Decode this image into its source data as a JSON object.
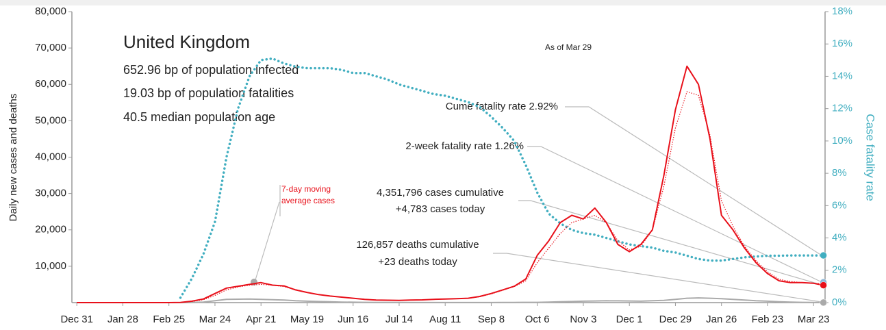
{
  "chart_data": {
    "type": "line",
    "title": "United Kingdom",
    "stats": [
      "652.96 bp of population infected",
      "19.03 bp of population fatalities",
      "40.5 median population age"
    ],
    "as_of": "As of Mar 29",
    "y_label": "Daily new cases and deaths",
    "y2_label": "Case fatality rate",
    "annotations": {
      "ma_label": "7-day moving average cases",
      "cume_cfr": "Cume fatality rate 2.92%",
      "two_week_cfr": "2-week fatality rate 1.26%",
      "cases_cum": "4,351,796 cases cumulative",
      "cases_today": "+4,783 cases today",
      "deaths_cum": "126,857 deaths cumulative",
      "deaths_today": "+23 deaths today"
    },
    "markers": [
      {
        "value": 2.92,
        "axis": "y2",
        "color": "#41aec0"
      },
      {
        "value": 1.26,
        "axis": "y2",
        "color": "#8fb8d8"
      },
      {
        "value": 4783,
        "color": "#e8101a"
      },
      {
        "value": 23,
        "color": "#aaaaaa"
      }
    ],
    "x": [
      0,
      7,
      14,
      21,
      28,
      35,
      42,
      49,
      56,
      63,
      70,
      77,
      84,
      91,
      98,
      105,
      112,
      119,
      126,
      133,
      140,
      147,
      154,
      161,
      168,
      175,
      182,
      189,
      196,
      203,
      210,
      217,
      224,
      231,
      238,
      245,
      252,
      259,
      266,
      273,
      280,
      287,
      294,
      301,
      308,
      315,
      322,
      329,
      336,
      343,
      350,
      357,
      364,
      371,
      378,
      385,
      392,
      399,
      406,
      413,
      420,
      427,
      434,
      441,
      448,
      454
    ],
    "series": [
      {
        "color": "#e8101a",
        "style": "solid",
        "values": [
          0,
          0,
          0,
          0,
          0,
          0,
          0,
          0,
          0,
          50,
          400,
          1000,
          2500,
          4000,
          4500,
          5000,
          5500,
          4800,
          4600,
          3500,
          2800,
          2200,
          1800,
          1500,
          1200,
          900,
          700,
          650,
          600,
          700,
          750,
          900,
          1000,
          1100,
          1200,
          1700,
          2500,
          3500,
          4500,
          6500,
          13000,
          17000,
          22000,
          24000,
          23000,
          26000,
          22000,
          16000,
          14000,
          16000,
          20000,
          35000,
          53000,
          65000,
          60000,
          45000,
          24000,
          20000,
          15000,
          11000,
          8000,
          6000,
          5500,
          5500,
          5300,
          4783
        ]
      },
      {
        "color": "#e8101a",
        "style": "dotted",
        "values": [
          0,
          0,
          0,
          0,
          0,
          0,
          0,
          0,
          0,
          30,
          300,
          800,
          2000,
          3500,
          4300,
          4800,
          5000,
          4800,
          4400,
          3600,
          2800,
          2200,
          1800,
          1500,
          1200,
          950,
          750,
          650,
          620,
          680,
          760,
          880,
          980,
          1080,
          1200,
          1600,
          2400,
          3400,
          4400,
          6000,
          11000,
          15000,
          19000,
          22000,
          23000,
          24000,
          22000,
          17000,
          14500,
          15500,
          20000,
          32000,
          48000,
          58000,
          57000,
          46000,
          28000,
          21000,
          15500,
          11500,
          8500,
          6400,
          5800,
          5500,
          5300,
          5200
        ]
      },
      {
        "color": "#aaaaaa",
        "style": "solid",
        "values": [
          0,
          0,
          0,
          0,
          0,
          0,
          0,
          0,
          0,
          2,
          30,
          150,
          500,
          900,
          950,
          1000,
          900,
          800,
          700,
          500,
          400,
          300,
          250,
          150,
          120,
          80,
          60,
          40,
          30,
          20,
          15,
          12,
          10,
          10,
          10,
          12,
          15,
          30,
          50,
          70,
          80,
          150,
          250,
          300,
          400,
          450,
          500,
          480,
          450,
          400,
          500,
          600,
          900,
          1200,
          1300,
          1200,
          1100,
          900,
          700,
          500,
          400,
          250,
          150,
          80,
          50,
          23
        ]
      },
      {
        "color": "#41aec0",
        "style": "dotted-thick",
        "axis": "y2",
        "values": [
          null,
          null,
          null,
          null,
          null,
          null,
          null,
          null,
          null,
          0.3,
          1.5,
          3,
          5,
          9,
          12,
          14,
          15,
          15.1,
          14.8,
          14.6,
          14.5,
          14.5,
          14.5,
          14.4,
          14.2,
          14.2,
          14.0,
          13.8,
          13.5,
          13.3,
          13.1,
          12.9,
          12.8,
          12.6,
          12.4,
          12.1,
          11.5,
          10.8,
          10.0,
          8.5,
          6.8,
          5.5,
          4.9,
          4.5,
          4.3,
          4.2,
          4.0,
          3.8,
          3.6,
          3.5,
          3.4,
          3.2,
          3.1,
          2.9,
          2.7,
          2.6,
          2.6,
          2.7,
          2.8,
          2.85,
          2.9,
          2.9,
          2.92,
          2.92,
          2.92,
          2.92
        ]
      }
    ],
    "xlim": [
      -3,
      455
    ],
    "xticks": [
      {
        "value": 0,
        "label": "Dec 31"
      },
      {
        "value": 28,
        "label": "Jan 28"
      },
      {
        "value": 56,
        "label": "Feb 25"
      },
      {
        "value": 84,
        "label": "Mar 24"
      },
      {
        "value": 112,
        "label": "Apr 21"
      },
      {
        "value": 140,
        "label": "May 19"
      },
      {
        "value": 168,
        "label": "Jun 16"
      },
      {
        "value": 196,
        "label": "Jul 14"
      },
      {
        "value": 224,
        "label": "Aug 11"
      },
      {
        "value": 252,
        "label": "Sep 8"
      },
      {
        "value": 280,
        "label": "Oct 6"
      },
      {
        "value": 308,
        "label": "Nov 3"
      },
      {
        "value": 336,
        "label": "Dec 1"
      },
      {
        "value": 364,
        "label": "Dec 29"
      },
      {
        "value": 392,
        "label": "Jan 26"
      },
      {
        "value": 420,
        "label": "Feb 23"
      },
      {
        "value": 448,
        "label": "Mar 23"
      }
    ],
    "ylim": [
      0,
      80000
    ],
    "yticks": [
      {
        "value": 10000,
        "label": "10,000"
      },
      {
        "value": 20000,
        "label": "20,000"
      },
      {
        "value": 30000,
        "label": "30,000"
      },
      {
        "value": 40000,
        "label": "40,000"
      },
      {
        "value": 50000,
        "label": "50,000"
      },
      {
        "value": 60000,
        "label": "60,000"
      },
      {
        "value": 70000,
        "label": "70,000"
      },
      {
        "value": 80000,
        "label": "80,000"
      }
    ],
    "y2lim": [
      0,
      18
    ],
    "y2ticks": [
      {
        "value": 0,
        "label": "0%"
      },
      {
        "value": 2,
        "label": "2%"
      },
      {
        "value": 4,
        "label": "4%"
      },
      {
        "value": 6,
        "label": "6%"
      },
      {
        "value": 8,
        "label": "8%"
      },
      {
        "value": 10,
        "label": "10%"
      },
      {
        "value": 12,
        "label": "12%"
      },
      {
        "value": 14,
        "label": "14%"
      },
      {
        "value": 16,
        "label": "16%"
      },
      {
        "value": 18,
        "label": "18%"
      }
    ]
  }
}
